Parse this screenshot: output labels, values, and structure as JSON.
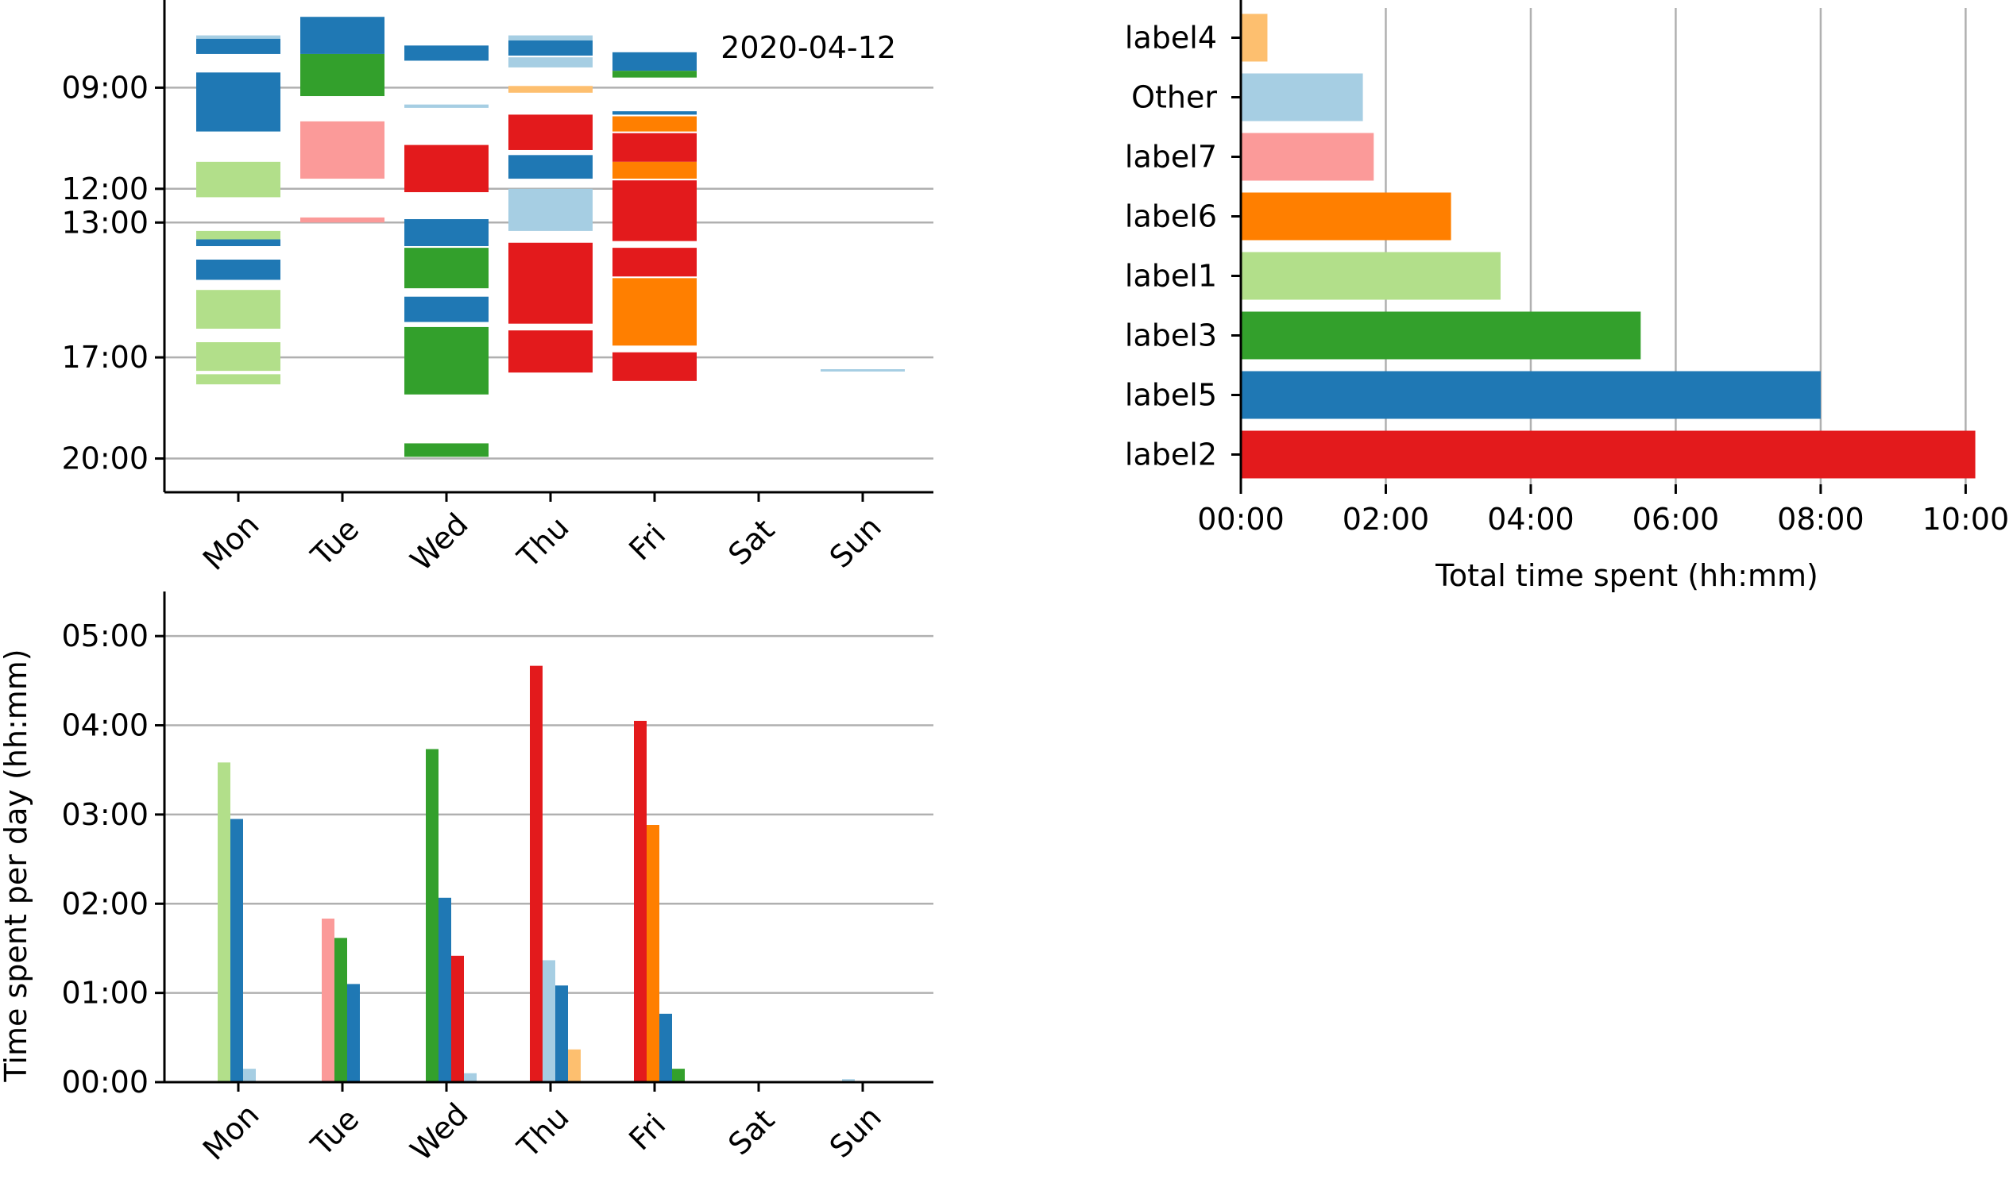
{
  "colors": {
    "label2": "#e31a1c",
    "label5": "#1f78b4",
    "label3": "#33a02c",
    "label1": "#b2df8a",
    "label6": "#ff7f00",
    "label7": "#fb9a99",
    "Other": "#a6cee3",
    "label4": "#fdbf6f"
  },
  "chart_data": [
    {
      "type": "timeline",
      "annotation": "2020-04-12",
      "categories": [
        "Mon",
        "Tue",
        "Wed",
        "Thu",
        "Fri",
        "Sat",
        "Sun"
      ],
      "y_ticks": [
        "09:00",
        "12:00",
        "13:00",
        "17:00",
        "20:00"
      ],
      "y_tick_hours": [
        9,
        12,
        13,
        17,
        20
      ],
      "ylim_hours": [
        6.4,
        21.0
      ],
      "grid_y": true,
      "blocks": [
        {
          "day": "Mon",
          "start": 7.45,
          "end": 7.55,
          "label": "Other"
        },
        {
          "day": "Mon",
          "start": 7.55,
          "end": 8.0,
          "label": "label5"
        },
        {
          "day": "Mon",
          "start": 8.55,
          "end": 10.3,
          "label": "label5"
        },
        {
          "day": "Mon",
          "start": 11.2,
          "end": 12.25,
          "label": "label1"
        },
        {
          "day": "Mon",
          "start": 13.25,
          "end": 13.5,
          "label": "label1"
        },
        {
          "day": "Mon",
          "start": 13.5,
          "end": 13.7,
          "label": "label5"
        },
        {
          "day": "Mon",
          "start": 14.1,
          "end": 14.7,
          "label": "label5"
        },
        {
          "day": "Mon",
          "start": 15.0,
          "end": 16.15,
          "label": "label1"
        },
        {
          "day": "Mon",
          "start": 16.55,
          "end": 17.4,
          "label": "label1"
        },
        {
          "day": "Mon",
          "start": 17.5,
          "end": 17.8,
          "label": "label1"
        },
        {
          "day": "Tue",
          "start": 6.9,
          "end": 8.0,
          "label": "label5"
        },
        {
          "day": "Tue",
          "start": 8.0,
          "end": 9.25,
          "label": "label3"
        },
        {
          "day": "Tue",
          "start": 10.0,
          "end": 11.7,
          "label": "label7"
        },
        {
          "day": "Tue",
          "start": 12.85,
          "end": 13.0,
          "label": "label7"
        },
        {
          "day": "Wed",
          "start": 7.75,
          "end": 8.2,
          "label": "label5"
        },
        {
          "day": "Wed",
          "start": 9.5,
          "end": 9.6,
          "label": "Other"
        },
        {
          "day": "Wed",
          "start": 10.7,
          "end": 12.1,
          "label": "label2"
        },
        {
          "day": "Wed",
          "start": 12.9,
          "end": 13.7,
          "label": "label5"
        },
        {
          "day": "Wed",
          "start": 13.75,
          "end": 14.95,
          "label": "label3"
        },
        {
          "day": "Wed",
          "start": 15.2,
          "end": 15.95,
          "label": "label5"
        },
        {
          "day": "Wed",
          "start": 16.1,
          "end": 18.1,
          "label": "label3"
        },
        {
          "day": "Wed",
          "start": 19.55,
          "end": 19.95,
          "label": "label3"
        },
        {
          "day": "Thu",
          "start": 7.45,
          "end": 7.6,
          "label": "Other"
        },
        {
          "day": "Thu",
          "start": 7.6,
          "end": 8.05,
          "label": "label5"
        },
        {
          "day": "Thu",
          "start": 8.1,
          "end": 8.4,
          "label": "Other"
        },
        {
          "day": "Thu",
          "start": 8.95,
          "end": 9.15,
          "label": "label4"
        },
        {
          "day": "Thu",
          "start": 9.8,
          "end": 10.85,
          "label": "label2"
        },
        {
          "day": "Thu",
          "start": 11.0,
          "end": 11.7,
          "label": "label5"
        },
        {
          "day": "Thu",
          "start": 12.0,
          "end": 13.25,
          "label": "Other"
        },
        {
          "day": "Thu",
          "start": 13.6,
          "end": 16.0,
          "label": "label2"
        },
        {
          "day": "Thu",
          "start": 16.2,
          "end": 17.45,
          "label": "label2"
        },
        {
          "day": "Fri",
          "start": 7.95,
          "end": 8.5,
          "label": "label5"
        },
        {
          "day": "Fri",
          "start": 8.5,
          "end": 8.7,
          "label": "label3"
        },
        {
          "day": "Fri",
          "start": 9.7,
          "end": 9.8,
          "label": "label5"
        },
        {
          "day": "Fri",
          "start": 9.85,
          "end": 10.3,
          "label": "label6"
        },
        {
          "day": "Fri",
          "start": 10.35,
          "end": 11.2,
          "label": "label2"
        },
        {
          "day": "Fri",
          "start": 11.2,
          "end": 11.7,
          "label": "label6"
        },
        {
          "day": "Fri",
          "start": 11.75,
          "end": 13.55,
          "label": "label2"
        },
        {
          "day": "Fri",
          "start": 13.75,
          "end": 14.6,
          "label": "label2"
        },
        {
          "day": "Fri",
          "start": 14.65,
          "end": 16.65,
          "label": "label6"
        },
        {
          "day": "Fri",
          "start": 16.85,
          "end": 17.7,
          "label": "label2"
        },
        {
          "day": "Sun",
          "start": 17.35,
          "end": 17.42,
          "label": "Other"
        }
      ]
    },
    {
      "type": "bar",
      "orientation": "horizontal",
      "categories": [
        "label2",
        "label5",
        "label3",
        "label1",
        "label6",
        "label7",
        "Other",
        "label4"
      ],
      "values_minutes": [
        608,
        480,
        331,
        215,
        174,
        110,
        101,
        22
      ],
      "xlabel": "Total time spent (hh:mm)",
      "x_ticks": [
        "00:00",
        "02:00",
        "04:00",
        "06:00",
        "08:00",
        "10:00"
      ],
      "x_tick_minutes": [
        0,
        120,
        240,
        360,
        480,
        600
      ],
      "xlim_minutes": [
        0,
        630
      ],
      "grid_x": true
    },
    {
      "type": "bar",
      "orientation": "vertical",
      "grouped": true,
      "categories": [
        "Mon",
        "Tue",
        "Wed",
        "Thu",
        "Fri",
        "Sat",
        "Sun"
      ],
      "ylabel": "Time spent per day (hh:mm)",
      "y_ticks": [
        "00:00",
        "01:00",
        "02:00",
        "03:00",
        "04:00",
        "05:00"
      ],
      "y_tick_minutes": [
        0,
        60,
        120,
        180,
        240,
        300
      ],
      "ylim_minutes": [
        0,
        330
      ],
      "grid_y": true,
      "groups": [
        {
          "day": "Mon",
          "bars": [
            {
              "label": "label1",
              "minutes": 215
            },
            {
              "label": "label5",
              "minutes": 177
            },
            {
              "label": "Other",
              "minutes": 9
            }
          ]
        },
        {
          "day": "Tue",
          "bars": [
            {
              "label": "label7",
              "minutes": 110
            },
            {
              "label": "label3",
              "minutes": 97
            },
            {
              "label": "label5",
              "minutes": 66
            }
          ]
        },
        {
          "day": "Wed",
          "bars": [
            {
              "label": "label3",
              "minutes": 224
            },
            {
              "label": "label5",
              "minutes": 124
            },
            {
              "label": "label2",
              "minutes": 85
            },
            {
              "label": "Other",
              "minutes": 6
            }
          ]
        },
        {
          "day": "Thu",
          "bars": [
            {
              "label": "label2",
              "minutes": 280
            },
            {
              "label": "Other",
              "minutes": 82
            },
            {
              "label": "label5",
              "minutes": 65
            },
            {
              "label": "label4",
              "minutes": 22
            }
          ]
        },
        {
          "day": "Fri",
          "bars": [
            {
              "label": "label2",
              "minutes": 243
            },
            {
              "label": "label6",
              "minutes": 173
            },
            {
              "label": "label5",
              "minutes": 46
            },
            {
              "label": "label3",
              "minutes": 9
            }
          ]
        },
        {
          "day": "Sat",
          "bars": []
        },
        {
          "day": "Sun",
          "bars": [
            {
              "label": "Other",
              "minutes": 2
            }
          ]
        }
      ]
    }
  ]
}
